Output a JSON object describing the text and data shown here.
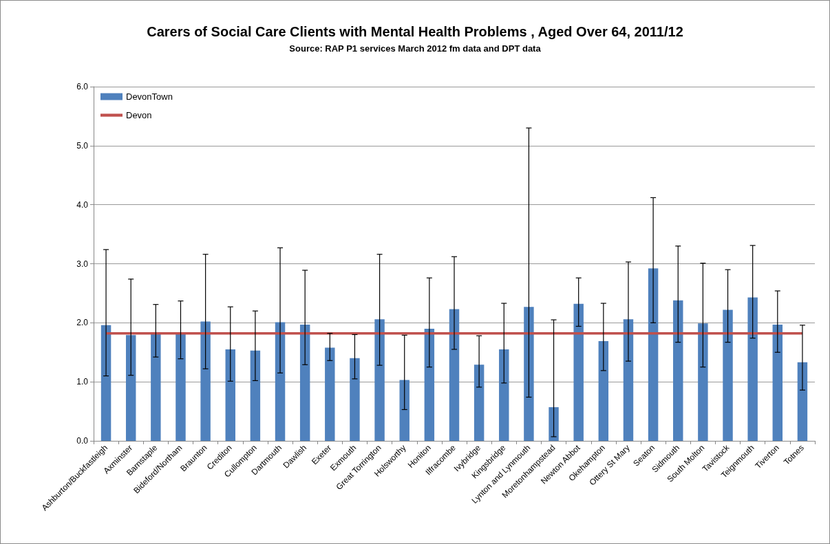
{
  "chart_data": {
    "type": "bar",
    "title": "Carers of Social Care Clients with Mental Health Problems , Aged Over 64, 2011/12",
    "subtitle": "Source: RAP P1 services March 2012 fm data and DPT data",
    "categories": [
      "Ashburton/Buckfastleigh",
      "Axminster",
      "Barnstaple",
      "Bideford/Northam",
      "Braunton",
      "Crediton",
      "Cullompton",
      "Dartmouth",
      "Dawlish",
      "Exeter",
      "Exmouth",
      "Great Torrington",
      "Holsworthy",
      "Honiton",
      "Ilfracombe",
      "Ivybridge",
      "Kingsbridge",
      "Lynton and Lynmouth",
      "Moretonhampstead",
      "Newton Abbot",
      "Okehampton",
      "Ottery St Mary",
      "Seaton",
      "Sidmouth",
      "South Molton",
      "Tavistock",
      "Teignmouth",
      "Tiverton",
      "Totnes"
    ],
    "series": [
      {
        "name": "DevonTown",
        "color": "#4f81bd",
        "values": [
          1.96,
          1.79,
          1.82,
          1.83,
          2.02,
          1.55,
          1.53,
          2.01,
          1.97,
          1.58,
          1.4,
          2.06,
          1.03,
          1.9,
          2.23,
          1.29,
          1.55,
          2.27,
          0.57,
          2.32,
          1.69,
          2.06,
          2.92,
          2.38,
          1.99,
          2.22,
          2.43,
          1.97,
          1.33
        ],
        "errors": [
          [
            1.1,
            3.24
          ],
          [
            1.11,
            2.74
          ],
          [
            1.42,
            2.31
          ],
          [
            1.39,
            2.37
          ],
          [
            1.22,
            3.16
          ],
          [
            1.01,
            2.27
          ],
          [
            1.02,
            2.2
          ],
          [
            1.15,
            3.27
          ],
          [
            1.29,
            2.89
          ],
          [
            1.36,
            1.82
          ],
          [
            1.05,
            1.8
          ],
          [
            1.28,
            3.16
          ],
          [
            0.53,
            1.79
          ],
          [
            1.25,
            2.76
          ],
          [
            1.55,
            3.12
          ],
          [
            0.91,
            1.78
          ],
          [
            0.98,
            2.33
          ],
          [
            0.74,
            5.3
          ],
          [
            0.07,
            2.05
          ],
          [
            1.94,
            2.76
          ],
          [
            1.19,
            2.33
          ],
          [
            1.35,
            3.03
          ],
          [
            2.0,
            4.12
          ],
          [
            1.67,
            3.3
          ],
          [
            1.25,
            3.01
          ],
          [
            1.67,
            2.9
          ],
          [
            1.74,
            3.31
          ],
          [
            1.5,
            2.54
          ],
          [
            0.86,
            1.96
          ]
        ]
      },
      {
        "name": "Devon",
        "type": "line",
        "color": "#c0504d",
        "marker": "none",
        "values": [
          1.82,
          1.82,
          1.82,
          1.82,
          1.82,
          1.82,
          1.82,
          1.82,
          1.82,
          1.82,
          1.82,
          1.82,
          1.82,
          1.82,
          1.82,
          1.82,
          1.82,
          1.82,
          1.82,
          1.82,
          1.82,
          1.82,
          1.82,
          1.82,
          1.82,
          1.82,
          1.82,
          1.82,
          1.82
        ]
      }
    ],
    "ylim": [
      0,
      6
    ],
    "yticks": [
      {
        "value": 0,
        "label": "0.0"
      },
      {
        "value": 1,
        "label": "1.0"
      },
      {
        "value": 2,
        "label": "2.0"
      },
      {
        "value": 3,
        "label": "3.0"
      },
      {
        "value": 4,
        "label": "4.0"
      },
      {
        "value": 5,
        "label": "5.0"
      },
      {
        "value": 6,
        "label": "6.0"
      }
    ],
    "grid": "y",
    "legend": "top left"
  }
}
